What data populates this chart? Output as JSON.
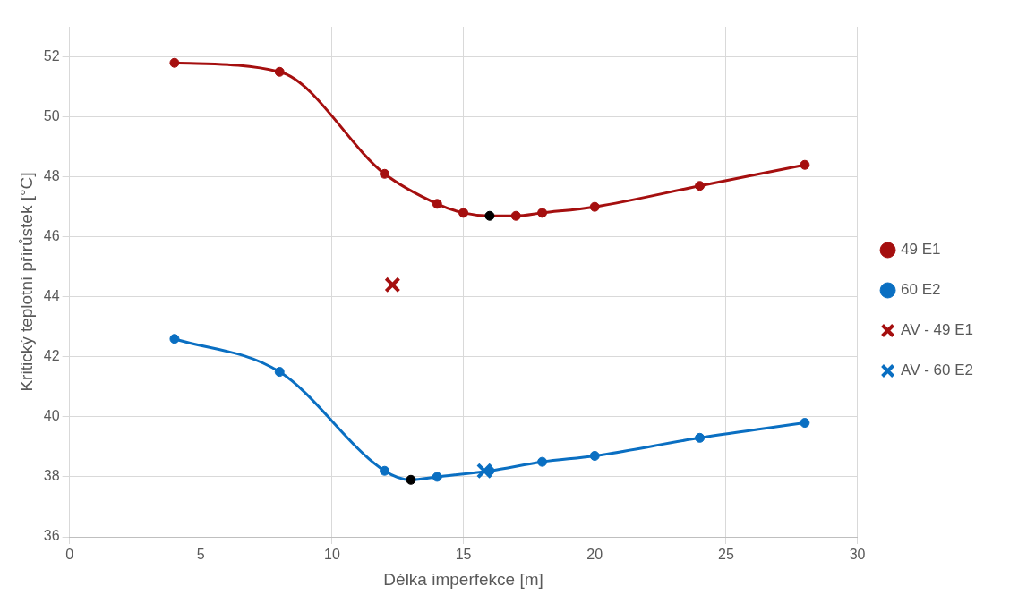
{
  "chart_data": {
    "type": "line",
    "xlabel": "Délka imperfekce [m]",
    "ylabel": "Kritický teplotní přírůstek [°C]",
    "xlim": [
      0,
      30
    ],
    "xticks": [
      0,
      5,
      10,
      15,
      20,
      25,
      30
    ],
    "ylim": [
      36,
      53
    ],
    "yticks": [
      36,
      38,
      40,
      42,
      44,
      46,
      48,
      50,
      52
    ],
    "grid": true,
    "legend": "right",
    "series": [
      {
        "name": "49 E1",
        "type": "line",
        "marker": "circle",
        "color": "#a50f0f",
        "x": [
          4,
          8,
          12,
          14,
          15,
          16,
          17,
          18,
          20,
          24,
          28
        ],
        "values": [
          51.8,
          51.5,
          48.1,
          47.1,
          46.8,
          46.7,
          46.7,
          46.8,
          47.0,
          47.7,
          48.4
        ],
        "colors": [
          "#a50f0f",
          "#a50f0f",
          "#a50f0f",
          "#a50f0f",
          "#a50f0f",
          "#000000",
          "#a50f0f",
          "#a50f0f",
          "#a50f0f",
          "#a50f0f",
          "#a50f0f"
        ]
      },
      {
        "name": "60 E2",
        "type": "line",
        "marker": "circle",
        "color": "#0a6fc2",
        "x": [
          4,
          8,
          12,
          13,
          14,
          16,
          18,
          20,
          24,
          28
        ],
        "values": [
          42.6,
          41.5,
          38.2,
          37.9,
          38.0,
          38.2,
          38.5,
          38.7,
          39.3,
          39.8
        ],
        "colors": [
          "#0a6fc2",
          "#0a6fc2",
          "#0a6fc2",
          "#000000",
          "#0a6fc2",
          "#0a6fc2",
          "#0a6fc2",
          "#0a6fc2",
          "#0a6fc2",
          "#0a6fc2"
        ]
      },
      {
        "name": "AV - 49 E1",
        "type": "scatter",
        "marker": "cross",
        "color": "#a50f0f",
        "x": [
          12.3
        ],
        "values": [
          44.4
        ]
      },
      {
        "name": "AV - 60 E2",
        "type": "scatter",
        "marker": "cross",
        "color": "#0a6fc2",
        "x": [
          15.8
        ],
        "values": [
          38.2
        ]
      }
    ]
  }
}
